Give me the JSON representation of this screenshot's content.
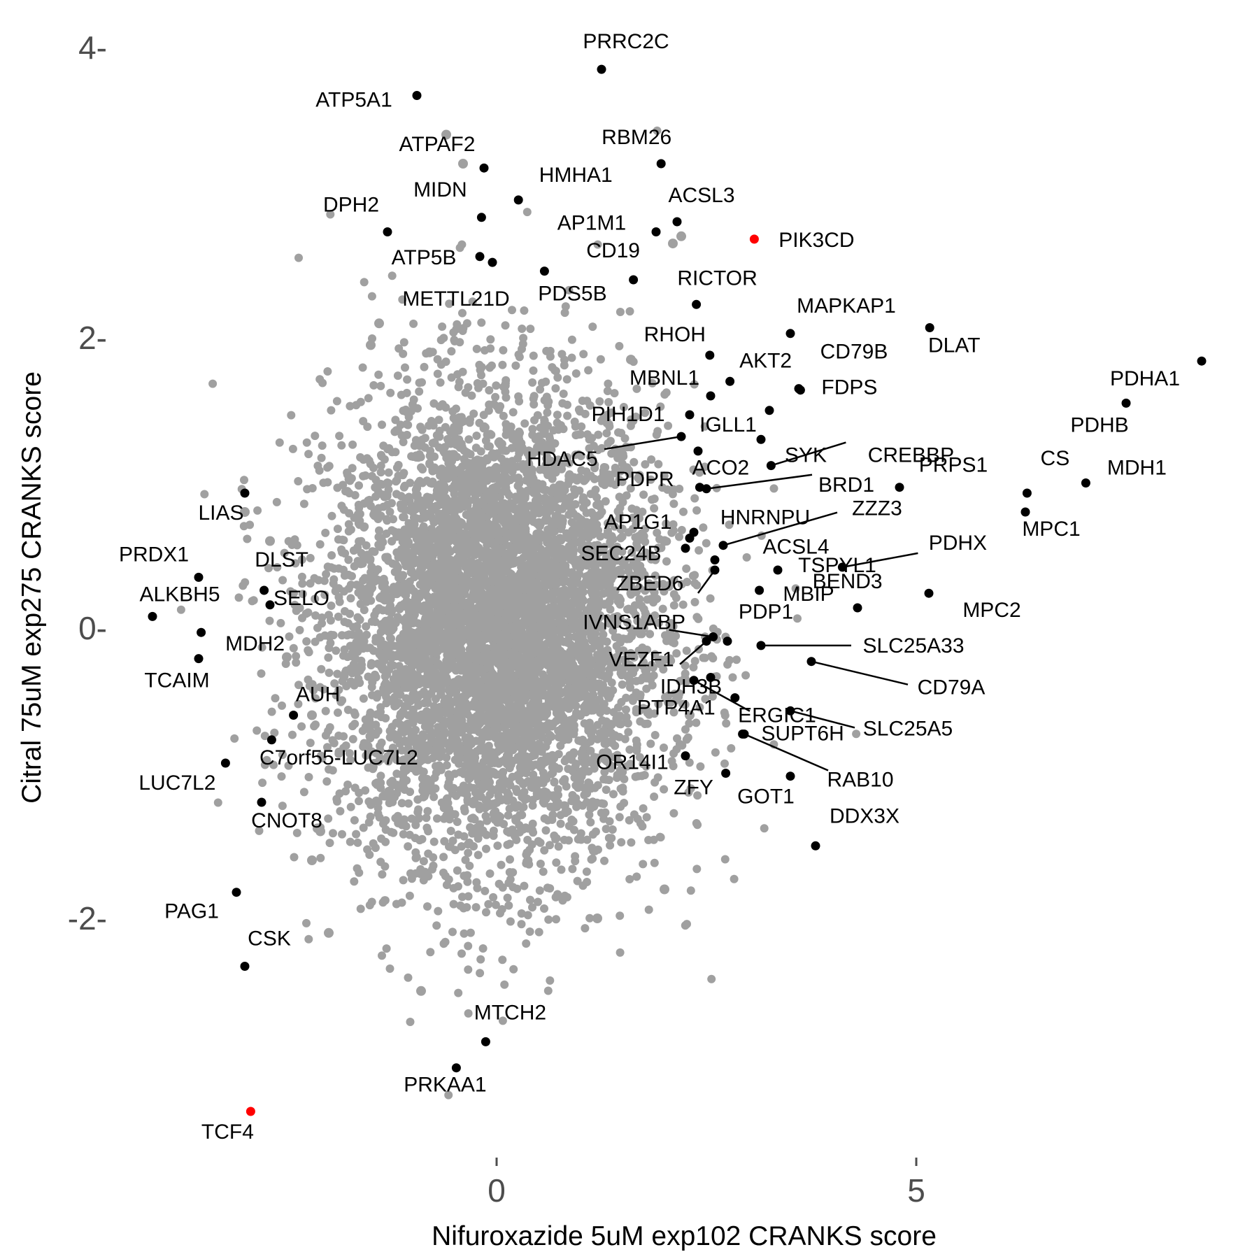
{
  "chart_data": {
    "type": "scatter",
    "title": "",
    "xlabel": "Nifuroxazide 5uM exp102 CRANKS score",
    "ylabel": "Citral 75uM exp275 CRANKS score",
    "xlim": [
      -4.7,
      9.3
    ],
    "ylim": [
      -3.6,
      4.3
    ],
    "x_ticks": [
      {
        "value": 0,
        "label": "0"
      },
      {
        "value": 5,
        "label": "5"
      }
    ],
    "y_ticks": [
      {
        "value": 4,
        "label": "4-"
      },
      {
        "value": 2,
        "label": "2-"
      },
      {
        "value": 0,
        "label": "0-"
      },
      {
        "value": -2,
        "label": "-2-"
      }
    ],
    "grid": false,
    "legend": "none",
    "colors": {
      "background": "#ffffff",
      "point": "#a0a0a0",
      "highlight_black": "#000000",
      "highlight_red": "#ff0000",
      "tick_text": "#4d4d4d"
    },
    "background_cloud": {
      "color": "#a0a0a0",
      "x_mean": 0.0,
      "x_sd": 1.0,
      "y_mean": 0.0,
      "y_sd": 0.8,
      "count": 6000
    },
    "series": [
      {
        "color": "#a0a0a0",
        "points": [
          {
            "x": -0.6,
            "y": 3.4
          },
          {
            "x": -0.4,
            "y": 3.2
          },
          {
            "x": 2.2,
            "y": 2.7
          },
          {
            "x": 2.1,
            "y": 2.65
          },
          {
            "x": -1.4,
            "y": 2.1
          },
          {
            "x": -1.5,
            "y": 1.95
          },
          {
            "x": -0.8,
            "y": 1.9
          },
          {
            "x": 1.6,
            "y": 1.85
          },
          {
            "x": -3.0,
            "y": 0.8
          },
          {
            "x": -2.7,
            "y": 0.6
          },
          {
            "x": -2.2,
            "y": -0.6
          },
          {
            "x": -2.5,
            "y": -0.2
          },
          {
            "x": -2.2,
            "y": -1.6
          },
          {
            "x": -2.0,
            "y": -2.1
          },
          {
            "x": -2.1,
            "y": -1.4
          },
          {
            "x": -0.9,
            "y": -2.5
          },
          {
            "x": 1.2,
            "y": -2.0
          },
          {
            "x": 2.0,
            "y": -1.8
          },
          {
            "x": 2.3,
            "y": -0.6
          },
          {
            "x": 2.0,
            "y": 0.6
          }
        ]
      },
      {
        "color": "#000000",
        "points": [
          {
            "x": 1.25,
            "y": 3.85,
            "label": "PRRC2C"
          },
          {
            "x": -0.95,
            "y": 3.67,
            "label": "ATP5A1"
          },
          {
            "x": -0.15,
            "y": 3.17,
            "label": "ATPAF2"
          },
          {
            "x": 1.96,
            "y": 3.2,
            "label": "RBM26"
          },
          {
            "x": 0.26,
            "y": 2.95,
            "label": "HMHA1"
          },
          {
            "x": -0.18,
            "y": 2.83,
            "label": "MIDN"
          },
          {
            "x": 2.15,
            "y": 2.8,
            "label": "ACSL3"
          },
          {
            "x": -1.3,
            "y": 2.73,
            "label": "DPH2"
          },
          {
            "x": 1.9,
            "y": 2.73,
            "label": "AP1M1"
          },
          {
            "x": -0.2,
            "y": 2.56,
            "label": "ATP5B"
          },
          {
            "x": -0.05,
            "y": 2.52,
            "label": "METTL21D"
          },
          {
            "x": 0.57,
            "y": 2.46,
            "label": "PDS5B"
          },
          {
            "x": 1.63,
            "y": 2.4,
            "label": "CD19"
          },
          {
            "x": 2.38,
            "y": 2.23,
            "label": "RICTOR"
          },
          {
            "x": 3.5,
            "y": 2.03,
            "label": "MAPKAP1"
          },
          {
            "x": 5.16,
            "y": 2.07,
            "label": "DLAT"
          },
          {
            "x": 2.54,
            "y": 1.88,
            "label": "RHOH"
          },
          {
            "x": 2.78,
            "y": 1.7,
            "label": "AKT2"
          },
          {
            "x": 3.6,
            "y": 1.65,
            "label": "CD79B"
          },
          {
            "x": 3.62,
            "y": 1.64,
            "label": "FDPS"
          },
          {
            "x": 2.55,
            "y": 1.6,
            "label": "MBNL1"
          },
          {
            "x": 8.4,
            "y": 1.84,
            "label": "PDHA1"
          },
          {
            "x": 7.5,
            "y": 1.55,
            "label": "PDHB"
          },
          {
            "x": 2.3,
            "y": 1.47,
            "label": "PIH1D1"
          },
          {
            "x": 3.25,
            "y": 1.5,
            "label": "IGLL1"
          },
          {
            "x": 3.15,
            "y": 1.3,
            "label": "SYK"
          },
          {
            "x": 2.2,
            "y": 1.32,
            "label": "HDAC5"
          },
          {
            "x": 2.4,
            "y": 1.22,
            "label": "PDPR"
          },
          {
            "x": 3.27,
            "y": 1.12,
            "label": "CREBBP"
          },
          {
            "x": 2.5,
            "y": 0.96,
            "label": "BRD1"
          },
          {
            "x": 2.42,
            "y": 0.97,
            "label": "ACO2"
          },
          {
            "x": 4.8,
            "y": 0.97,
            "label": "PRPS1"
          },
          {
            "x": 7.02,
            "y": 1.0,
            "label": "MDH1"
          },
          {
            "x": 6.32,
            "y": 0.93,
            "label": "CS"
          },
          {
            "x": 6.3,
            "y": 0.8,
            "label": "MPC1"
          },
          {
            "x": 2.35,
            "y": 0.66,
            "label": "AP1G1"
          },
          {
            "x": 2.7,
            "y": 0.57,
            "label": "ZZZ3"
          },
          {
            "x": 2.3,
            "y": 0.62,
            "label": "HNRNPU"
          },
          {
            "x": 2.25,
            "y": 0.55,
            "label": "SEC24B"
          },
          {
            "x": 4.12,
            "y": 0.42,
            "label": "PDHX"
          },
          {
            "x": 2.6,
            "y": 0.47,
            "label": "ACSL4"
          },
          {
            "x": 3.35,
            "y": 0.4,
            "label": "TSPYL1"
          },
          {
            "x": 2.6,
            "y": 0.4,
            "label": "ZBED6"
          },
          {
            "x": 3.13,
            "y": 0.26,
            "label": "BEND3"
          },
          {
            "x": 5.15,
            "y": 0.24,
            "label": "MPC2"
          },
          {
            "x": 4.3,
            "y": 0.14,
            "label": "MBIP"
          },
          {
            "x": 2.58,
            "y": -0.06,
            "label": "IVNS1ABP"
          },
          {
            "x": 2.75,
            "y": -0.09,
            "label": "PDP1"
          },
          {
            "x": 3.15,
            "y": -0.12,
            "label": "SLC25A33"
          },
          {
            "x": 2.5,
            "y": -0.09,
            "label": "VEZF1"
          },
          {
            "x": 3.75,
            "y": -0.23,
            "label": "CD79A"
          },
          {
            "x": 2.55,
            "y": -0.34,
            "label": "IDH3B"
          },
          {
            "x": 2.35,
            "y": -0.36,
            "label": "ERGIC1"
          },
          {
            "x": 2.84,
            "y": -0.48,
            "label": "PTP4A1"
          },
          {
            "x": 3.5,
            "y": -0.57,
            "label": "SLC25A5"
          },
          {
            "x": 2.93,
            "y": -0.73,
            "label": "SUPT6H"
          },
          {
            "x": 2.95,
            "y": -0.73,
            "label": "RAB10"
          },
          {
            "x": 2.25,
            "y": -0.88,
            "label": "OR14I1"
          },
          {
            "x": 2.73,
            "y": -1.0,
            "label": "ZFY"
          },
          {
            "x": 3.5,
            "y": -1.02,
            "label": "GOT1"
          },
          {
            "x": 3.8,
            "y": -1.5,
            "label": "DDX3X"
          },
          {
            "x": -3.0,
            "y": 0.93,
            "label": "LIAS"
          },
          {
            "x": -3.55,
            "y": 0.35,
            "label": "PRDX1"
          },
          {
            "x": -2.77,
            "y": 0.26,
            "label": "DLST"
          },
          {
            "x": -2.7,
            "y": 0.16,
            "label": "SELO"
          },
          {
            "x": -4.1,
            "y": 0.08,
            "label": "ALKBH5"
          },
          {
            "x": -3.52,
            "y": -0.03,
            "label": "MDH2"
          },
          {
            "x": -3.55,
            "y": -0.21,
            "label": "TCAIM"
          },
          {
            "x": -2.42,
            "y": -0.6,
            "label": "AUH"
          },
          {
            "x": -2.68,
            "y": -0.77,
            "label": "C7orf55-LUC7L2"
          },
          {
            "x": -3.23,
            "y": -0.93,
            "label": "LUC7L2"
          },
          {
            "x": -2.8,
            "y": -1.2,
            "label": "CNOT8"
          },
          {
            "x": -3.1,
            "y": -1.82,
            "label": "PAG1"
          },
          {
            "x": -3.0,
            "y": -2.33,
            "label": "CSK"
          },
          {
            "x": -0.13,
            "y": -2.85,
            "label": "MTCH2"
          },
          {
            "x": -0.48,
            "y": -3.03,
            "label": "PRKAA1"
          }
        ]
      },
      {
        "color": "#ff0000",
        "points": [
          {
            "x": 3.07,
            "y": 2.68,
            "label": "PIK3CD"
          },
          {
            "x": -2.93,
            "y": -3.33,
            "label": "TCF4"
          }
        ]
      }
    ]
  }
}
